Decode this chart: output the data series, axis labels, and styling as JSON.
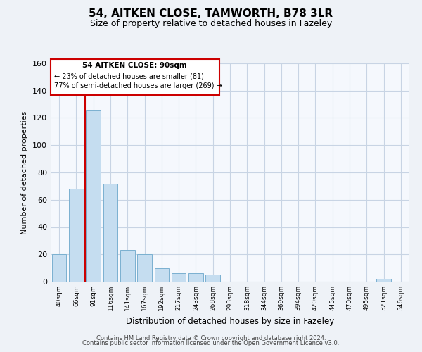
{
  "title": "54, AITKEN CLOSE, TAMWORTH, B78 3LR",
  "subtitle": "Size of property relative to detached houses in Fazeley",
  "xlabel": "Distribution of detached houses by size in Fazeley",
  "ylabel": "Number of detached properties",
  "bin_labels": [
    "40sqm",
    "66sqm",
    "91sqm",
    "116sqm",
    "141sqm",
    "167sqm",
    "192sqm",
    "217sqm",
    "243sqm",
    "268sqm",
    "293sqm",
    "318sqm",
    "344sqm",
    "369sqm",
    "394sqm",
    "420sqm",
    "445sqm",
    "470sqm",
    "495sqm",
    "521sqm",
    "546sqm"
  ],
  "bar_values": [
    20,
    68,
    126,
    72,
    23,
    20,
    10,
    6,
    6,
    5,
    0,
    0,
    0,
    0,
    0,
    0,
    0,
    0,
    0,
    2,
    0
  ],
  "bar_color": "#c5ddf0",
  "bar_edge_color": "#7ab0d0",
  "marker_line_color": "#cc0000",
  "annotation_lines": [
    "54 AITKEN CLOSE: 90sqm",
    "← 23% of detached houses are smaller (81)",
    "77% of semi-detached houses are larger (269) →"
  ],
  "ylim": [
    0,
    160
  ],
  "yticks": [
    0,
    20,
    40,
    60,
    80,
    100,
    120,
    140,
    160
  ],
  "footer_line1": "Contains HM Land Registry data © Crown copyright and database right 2024.",
  "footer_line2": "Contains public sector information licensed under the Open Government Licence v3.0.",
  "background_color": "#eef2f7",
  "plot_bg_color": "#f5f8fd",
  "grid_color": "#c8d4e4"
}
